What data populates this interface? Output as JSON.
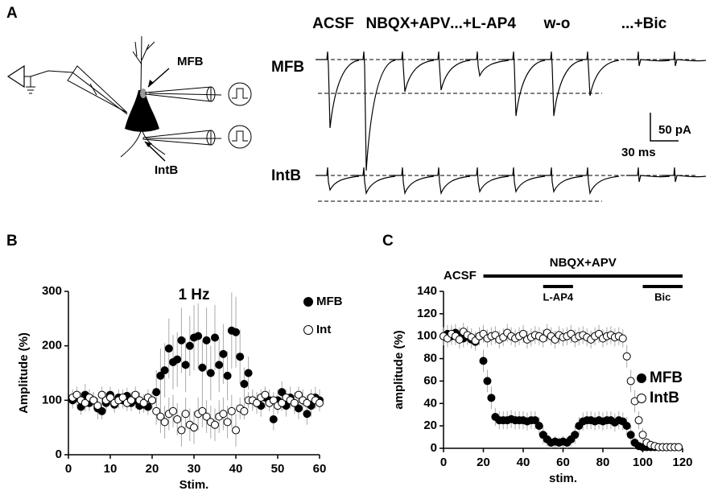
{
  "panel_a": {
    "letter": "A",
    "conditions": [
      "ACSF",
      "NBQX+APV",
      "...+L-AP4",
      "w-o",
      "...+Bic"
    ],
    "rows": [
      "MFB",
      "IntB"
    ],
    "cell_labels": [
      "MFB",
      "IntB"
    ],
    "scale_bar": {
      "current": "50 pA",
      "time": "30 ms"
    }
  },
  "chart_data": [
    {
      "type": "scatter",
      "panel": "B",
      "title": "1 Hz",
      "x_label": "Stim.",
      "y_label": "Amplitude (%)",
      "x": [
        1,
        2,
        3,
        4,
        5,
        6,
        7,
        8,
        9,
        10,
        11,
        12,
        13,
        14,
        15,
        16,
        17,
        18,
        19,
        20,
        21,
        22,
        23,
        24,
        25,
        26,
        27,
        28,
        29,
        30,
        31,
        32,
        33,
        34,
        35,
        36,
        37,
        38,
        39,
        40,
        41,
        42,
        43,
        44,
        45,
        46,
        47,
        48,
        49,
        50,
        51,
        52,
        53,
        54,
        55,
        56,
        57,
        58,
        59,
        60
      ],
      "xlim": [
        0,
        60
      ],
      "xticks": [
        0,
        10,
        20,
        30,
        40,
        50,
        60
      ],
      "ylim": [
        0,
        300
      ],
      "yticks": [
        0,
        100,
        200,
        300
      ],
      "legend": "upper right",
      "series": [
        {
          "name": "MFB",
          "color": "#000000",
          "marker": "filled",
          "values": [
            100,
            105,
            88,
            110,
            95,
            100,
            85,
            80,
            95,
            110,
            92,
            105,
            100,
            108,
            95,
            100,
            90,
            92,
            88,
            100,
            115,
            145,
            155,
            195,
            170,
            175,
            210,
            165,
            200,
            215,
            218,
            160,
            210,
            150,
            215,
            165,
            185,
            145,
            228,
            225,
            180,
            130,
            150,
            100,
            95,
            90,
            105,
            100,
            65,
            100,
            115,
            90,
            105,
            95,
            85,
            100,
            75,
            90,
            105,
            100
          ],
          "errors": [
            15,
            15,
            15,
            20,
            15,
            15,
            20,
            15,
            15,
            15,
            15,
            15,
            15,
            15,
            15,
            15,
            15,
            15,
            15,
            15,
            40,
            50,
            50,
            55,
            50,
            50,
            60,
            50,
            55,
            60,
            60,
            50,
            60,
            50,
            60,
            50,
            55,
            45,
            70,
            65,
            50,
            30,
            30,
            20,
            20,
            20,
            20,
            20,
            20,
            20,
            20,
            20,
            20,
            20,
            20,
            20,
            20,
            20,
            20,
            20
          ]
        },
        {
          "name": "Int",
          "color": "#000000",
          "marker": "open",
          "values": [
            105,
            110,
            100,
            95,
            105,
            100,
            90,
            110,
            100,
            105,
            95,
            100,
            105,
            95,
            100,
            110,
            100,
            95,
            105,
            100,
            80,
            70,
            60,
            75,
            80,
            65,
            45,
            75,
            55,
            50,
            75,
            80,
            70,
            60,
            55,
            70,
            75,
            60,
            80,
            45,
            85,
            80,
            100,
            100,
            95,
            105,
            110,
            95,
            100,
            90,
            95,
            105,
            100,
            95,
            110,
            100,
            95,
            105,
            100,
            95
          ],
          "errors": [
            15,
            15,
            15,
            15,
            15,
            15,
            15,
            15,
            15,
            15,
            15,
            15,
            15,
            15,
            15,
            15,
            15,
            15,
            15,
            15,
            25,
            30,
            30,
            30,
            30,
            30,
            30,
            30,
            30,
            30,
            30,
            30,
            30,
            30,
            30,
            30,
            30,
            30,
            30,
            30,
            20,
            15,
            15,
            15,
            15,
            15,
            15,
            15,
            15,
            15,
            15,
            15,
            15,
            15,
            15,
            15,
            15,
            15,
            15,
            15
          ]
        }
      ]
    },
    {
      "type": "scatter",
      "panel": "C",
      "x_label": "stim.",
      "y_label": "amplitude (%)",
      "x": [
        0,
        2,
        4,
        6,
        8,
        10,
        12,
        14,
        16,
        18,
        20,
        22,
        24,
        26,
        28,
        30,
        32,
        34,
        36,
        38,
        40,
        42,
        44,
        46,
        48,
        50,
        52,
        54,
        56,
        58,
        60,
        62,
        64,
        66,
        68,
        70,
        72,
        74,
        76,
        78,
        80,
        82,
        84,
        86,
        88,
        90,
        92,
        94,
        96,
        98,
        100,
        102,
        104,
        106,
        108,
        110,
        112,
        114,
        116,
        118
      ],
      "xlim": [
        0,
        120
      ],
      "xticks": [
        0,
        20,
        40,
        60,
        80,
        100,
        120
      ],
      "ylim": [
        0,
        140
      ],
      "yticks": [
        0,
        20,
        40,
        60,
        80,
        100,
        120,
        140
      ],
      "legend": "center right",
      "condition_label": "ACSF",
      "periods": [
        {
          "label": "NBQX+APV",
          "start": 20,
          "end": 120
        },
        {
          "label": "L-AP4",
          "start": 50,
          "end": 65
        },
        {
          "label": "Bic",
          "start": 100,
          "end": 120
        }
      ],
      "series": [
        {
          "name": "MFB",
          "color": "#000000",
          "marker": "filled",
          "values": [
            100,
            102,
            100,
            103,
            100,
            98,
            100,
            97,
            95,
            100,
            78,
            60,
            45,
            28,
            25,
            25,
            25,
            26,
            25,
            25,
            25,
            24,
            25,
            25,
            20,
            12,
            8,
            5,
            6,
            5,
            6,
            5,
            8,
            12,
            20,
            24,
            25,
            25,
            24,
            25,
            24,
            25,
            25,
            23,
            25,
            24,
            20,
            12,
            5,
            2,
            1,
            1,
            1,
            1,
            1,
            1,
            1,
            1,
            1,
            1
          ],
          "errors": [
            8,
            8,
            8,
            8,
            8,
            8,
            8,
            8,
            8,
            8,
            10,
            10,
            10,
            8,
            8,
            8,
            8,
            8,
            8,
            8,
            8,
            8,
            8,
            8,
            8,
            8,
            6,
            5,
            5,
            5,
            5,
            5,
            6,
            8,
            8,
            8,
            8,
            8,
            8,
            8,
            8,
            8,
            8,
            8,
            8,
            8,
            8,
            8,
            5,
            3,
            2,
            2,
            2,
            2,
            2,
            2,
            2,
            2,
            2,
            2
          ]
        },
        {
          "name": "IntB",
          "color": "#000000",
          "marker": "open",
          "values": [
            100,
            98,
            102,
            100,
            97,
            104,
            101,
            99,
            96,
            100,
            102,
            98,
            100,
            101,
            97,
            99,
            103,
            100,
            98,
            100,
            102,
            97,
            99,
            101,
            100,
            98,
            103,
            100,
            97,
            101,
            99,
            100,
            102,
            98,
            100,
            101,
            99,
            97,
            100,
            102,
            98,
            100,
            101,
            99,
            100,
            98,
            82,
            60,
            42,
            25,
            12,
            5,
            3,
            2,
            1,
            1,
            1,
            1,
            1,
            1
          ],
          "errors": [
            8,
            8,
            8,
            8,
            8,
            8,
            8,
            8,
            8,
            8,
            8,
            8,
            8,
            8,
            8,
            8,
            8,
            8,
            8,
            8,
            8,
            8,
            8,
            8,
            8,
            8,
            8,
            8,
            8,
            8,
            8,
            8,
            8,
            8,
            8,
            8,
            8,
            8,
            8,
            8,
            8,
            8,
            8,
            8,
            8,
            8,
            10,
            10,
            10,
            8,
            6,
            4,
            2,
            2,
            2,
            2,
            2,
            2,
            2,
            2
          ]
        }
      ]
    }
  ]
}
